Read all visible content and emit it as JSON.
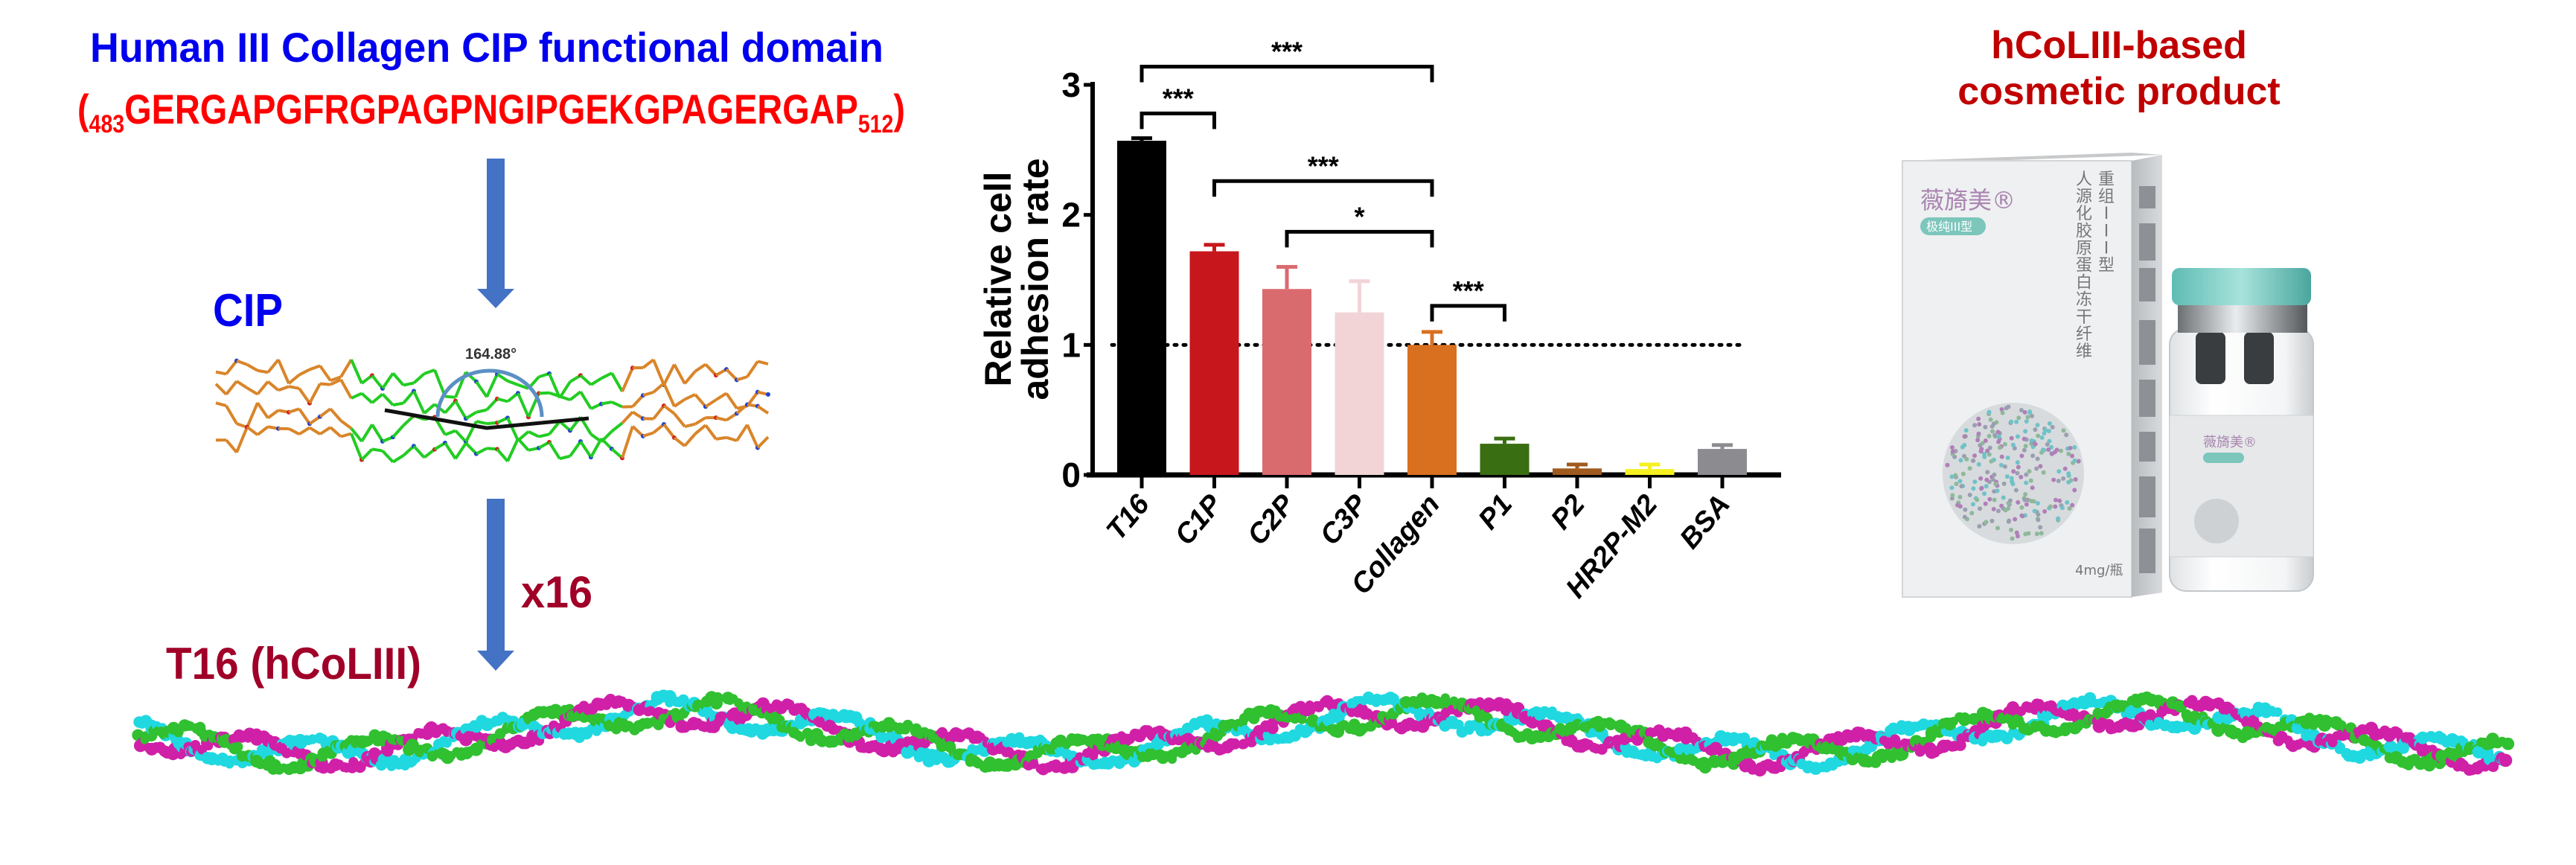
{
  "left": {
    "title": "Human III Collagen CIP functional domain",
    "sequence": {
      "open": "(",
      "start": "483",
      "residues": "GERGAPGFRGPAGPNGIPGEKGPAGERGAP",
      "end": "512",
      "close": ")"
    },
    "cip_label": "CIP",
    "angle_label": "164.88°",
    "multiplier_label": "x16",
    "t16_label": "T16 (hCoLIII)",
    "colors": {
      "title": "#0000ee",
      "sequence": "#ff0000",
      "t16": "#a00028",
      "arrow": "#4472c4"
    }
  },
  "product": {
    "title_line1": "hCoLIII-based",
    "title_line2": "cosmetic product",
    "title_color": "#c00000",
    "packaging_text": {
      "brand": "薇旖美®",
      "badge": "极纯III型",
      "line1": "重组III型",
      "line2": "人源化胶原蛋白冻干纤维",
      "dose": "4mg/瓶"
    }
  },
  "chart_data": {
    "type": "bar",
    "ylabel_line1": "Relative cell",
    "ylabel_line2": "adhesion rate",
    "ylim": [
      0,
      3
    ],
    "yticks": [
      "0",
      "1",
      "2",
      "3"
    ],
    "categories": [
      "T16",
      "C1P",
      "C2P",
      "C3P",
      "Collagen",
      "P1",
      "P2",
      "HR2P-M2",
      "BSA"
    ],
    "values": [
      2.57,
      1.72,
      1.43,
      1.25,
      1.0,
      0.24,
      0.05,
      0.045,
      0.2
    ],
    "errors": [
      0.02,
      0.05,
      0.17,
      0.24,
      0.1,
      0.04,
      0.03,
      0.035,
      0.03
    ],
    "colors": [
      "#000000",
      "#c8161d",
      "#d96b6f",
      "#f2d4d7",
      "#d97020",
      "#3a6e12",
      "#a05a1e",
      "#f5f020",
      "#8c8c90"
    ],
    "reference_line": 1,
    "significance": [
      {
        "from": "T16",
        "to": "Collagen",
        "label": "***"
      },
      {
        "from": "T16",
        "to": "C1P",
        "label": "***"
      },
      {
        "from": "C1P",
        "to": "Collagen",
        "label": "***"
      },
      {
        "from": "C2P",
        "to": "Collagen",
        "label": "*"
      },
      {
        "from": "Collagen",
        "to": "P1",
        "label": "***"
      }
    ],
    "grid": false,
    "legend": "none"
  }
}
